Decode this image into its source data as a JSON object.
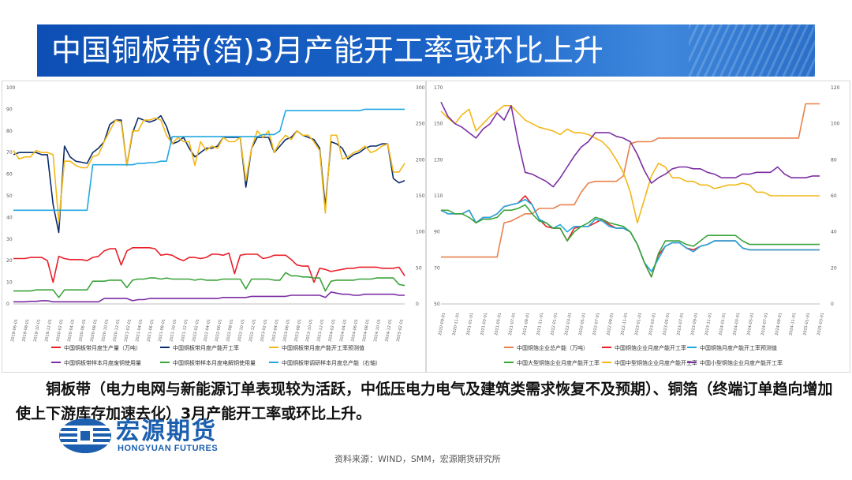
{
  "title": "中国铜板带(箔)3月产能开工率或环比上升",
  "body_text": "铜板带（电力电网与新能源订单表现较为活跃，中低压电力电气及建筑类需求恢复不及预期）、铜箔（终端订单趋向增加使上下游库存加速去化）3月产能开工率或环比上升。",
  "logo": {
    "name_cn": "宏源期货",
    "name_en": "HONGYUAN FUTURES"
  },
  "source": "资料来源：WIND，SMM，宏源期货研究所",
  "chart_data": [
    {
      "type": "line",
      "title": "",
      "x": [
        "2019-06-01",
        "2019-07-01",
        "2019-08-01",
        "2019-09-01",
        "2019-10-01",
        "2019-11-01",
        "2019-12-01",
        "2020-01-01",
        "2020-02-01",
        "2020-03-01",
        "2020-04-01",
        "2020-05-01",
        "2020-06-01",
        "2020-07-01",
        "2020-08-01",
        "2020-09-01",
        "2020-10-01",
        "2020-11-01",
        "2020-12-01",
        "2021-01-01",
        "2021-02-01",
        "2021-03-01",
        "2021-04-01",
        "2021-05-01",
        "2021-06-01",
        "2021-07-01",
        "2021-08-01",
        "2021-09-01",
        "2021-10-01",
        "2021-11-01",
        "2021-12-01",
        "2022-01-01",
        "2022-02-01",
        "2022-03-01",
        "2022-04-01",
        "2022-05-01",
        "2022-06-01",
        "2022-07-01",
        "2022-08-01",
        "2022-09-01",
        "2022-10-01",
        "2022-11-01",
        "2022-12-01",
        "2023-01-01",
        "2023-02-01",
        "2023-03-01",
        "2023-04-01",
        "2023-05-01",
        "2023-06-01",
        "2023-07-01",
        "2023-08-01",
        "2023-09-01",
        "2023-10-01",
        "2023-11-01",
        "2023-12-01",
        "2024-01-01",
        "2024-02-01",
        "2024-03-01",
        "2024-04-01",
        "2024-05-01",
        "2024-06-01",
        "2024-07-01",
        "2024-08-01",
        "2024-09-01",
        "2024-10-01",
        "2024-11-01",
        "2024-12-01",
        "2025-01-01",
        "2025-02-01",
        "2025-03-01"
      ],
      "x_tick_labels": [
        "2019-06-01",
        "2019-08-01",
        "2019-10-01",
        "2019-12-01",
        "2020-02-01",
        "2020-04-01",
        "2020-06-01",
        "2020-08-01",
        "2020-10-01",
        "2020-12-01",
        "2021-02-01",
        "2021-04-01",
        "2021-06-01",
        "2021-08-01",
        "2021-10-01",
        "2021-12-01",
        "2022-02-01",
        "2022-04-01",
        "2022-06-01",
        "2022-08-01",
        "2022-10-01",
        "2022-12-01",
        "2023-02-01",
        "2023-04-01",
        "2023-06-01",
        "2023-08-01",
        "2023-10-01",
        "2023-12-01",
        "2024-02-01",
        "2024-04-01",
        "2024-06-01",
        "2024-08-01",
        "2024-10-01",
        "2024-12-01",
        "2025-02-01"
      ],
      "ylim": [
        0,
        100
      ],
      "y_ticks": [
        0,
        10,
        20,
        30,
        40,
        50,
        60,
        70,
        80,
        90,
        100
      ],
      "y2lim": [
        0,
        300
      ],
      "y2_ticks": [
        0,
        50,
        100,
        150,
        200,
        250,
        300
      ],
      "legend_position": "bottom",
      "series": [
        {
          "name": "中国铜板带月度生产量（万吨）",
          "color": "#e8202a",
          "axis": "left",
          "values": [
            21,
            21,
            21,
            21.5,
            21.5,
            21.5,
            20,
            10,
            22,
            21,
            20.5,
            20.5,
            20.5,
            20,
            21.5,
            22,
            24.5,
            25.5,
            25.5,
            18,
            24.5,
            26,
            26,
            26,
            26,
            25.5,
            22.5,
            23,
            22.5,
            21,
            20,
            21.5,
            21.5,
            21,
            21.5,
            23,
            23,
            22.5,
            23.5,
            14,
            22.5,
            23,
            23,
            23,
            21,
            21.5,
            22.5,
            22.5,
            22.5,
            20.5,
            18,
            17.5,
            17.5,
            10,
            16.5,
            16,
            15,
            15.5,
            16,
            16.5,
            16.5,
            17,
            17,
            17,
            17,
            16.5,
            16.5,
            16.5,
            17,
            13
          ]
        },
        {
          "name": "中国铜板带月度产能开工率",
          "color": "#0b2c6b",
          "axis": "left",
          "values": [
            69,
            70,
            70,
            70,
            70,
            69,
            69,
            46,
            33,
            73,
            68,
            66,
            65.5,
            65,
            70,
            72,
            75,
            83,
            85,
            85,
            64,
            79,
            86,
            85,
            84,
            85,
            87,
            82,
            74,
            75,
            77,
            72,
            68,
            70,
            72,
            72,
            73,
            77,
            77,
            77,
            77,
            54,
            72,
            77,
            77,
            77,
            70,
            73,
            76,
            77,
            80,
            78,
            77,
            76,
            72,
            45,
            75,
            74,
            72,
            67,
            69,
            70,
            72,
            73,
            73,
            74,
            74,
            58,
            56,
            57
          ]
        },
        {
          "name": "中国铜板带月度产能开工率预测值",
          "color": "#f2b818",
          "axis": "left",
          "values": [
            71,
            67,
            68,
            68,
            71,
            70,
            70,
            69,
            38,
            66,
            66,
            64,
            63,
            63,
            68,
            69,
            75,
            80,
            85,
            84,
            64,
            80,
            80,
            85,
            85,
            86,
            85,
            78,
            74,
            77,
            75,
            75,
            64,
            75,
            71,
            73,
            72,
            77,
            75,
            75,
            77,
            57,
            72,
            80,
            77,
            80,
            70,
            75,
            78,
            76,
            80,
            78,
            78,
            75,
            71,
            42,
            78,
            78,
            67,
            68,
            70,
            71,
            73,
            70,
            71,
            73,
            74,
            61,
            61,
            65
          ]
        },
        {
          "name": "中国铜板带样本月度废铜使用量",
          "color": "#7b2fa3",
          "axis": "left",
          "values": [
            1,
            1,
            1,
            1.2,
            1.2,
            1.5,
            1.5,
            1,
            1,
            1,
            1,
            1,
            1,
            1,
            1,
            1,
            2.5,
            2.5,
            2.5,
            2.5,
            2.5,
            1.5,
            2,
            2,
            2.5,
            2.5,
            2.5,
            2.5,
            2.5,
            2.5,
            2.5,
            2.5,
            2.5,
            2.5,
            2.5,
            2.5,
            2.5,
            3,
            3,
            3,
            3,
            3,
            3.5,
            3.5,
            3.5,
            3.5,
            3.5,
            3.5,
            3.5,
            4,
            4,
            4,
            4,
            4,
            4,
            3,
            5.5,
            5,
            4.5,
            4.5,
            4,
            4,
            4.5,
            4.5,
            4.5,
            4.5,
            4.5,
            4.5,
            4,
            4
          ]
        },
        {
          "name": "中国铜板带样本月度电解铜使用量",
          "color": "#3ca33c",
          "axis": "left",
          "values": [
            6,
            6,
            6,
            6,
            6.5,
            6.5,
            6.5,
            6.5,
            3,
            6.5,
            6.5,
            6.5,
            6.5,
            6.5,
            10.5,
            10.5,
            10.5,
            11,
            11,
            11,
            7.5,
            11,
            11.5,
            11.5,
            12,
            12,
            11.5,
            12,
            11.5,
            11.5,
            11.5,
            11.5,
            11,
            11.5,
            11,
            11,
            11,
            11.5,
            11.5,
            11.5,
            11.5,
            7,
            11.5,
            11.5,
            11.5,
            11.5,
            11,
            11,
            14.5,
            13,
            13,
            12.5,
            12.5,
            12,
            12,
            6,
            10.5,
            11,
            11,
            11,
            11,
            11.5,
            11.5,
            11.5,
            12,
            12,
            12,
            12,
            9,
            8.5
          ]
        },
        {
          "name": "中国铜板带调研样本月度总产能（右轴）",
          "color": "#20a8e0",
          "axis": "right",
          "values": [
            130,
            130,
            130,
            130,
            130,
            130,
            130,
            130,
            130,
            130,
            130,
            130,
            130,
            130,
            193,
            193,
            193,
            193,
            193,
            193,
            193,
            193,
            195,
            195,
            196,
            196,
            198,
            198,
            232,
            232,
            232,
            232,
            232,
            232,
            232,
            232,
            232,
            232,
            232,
            232,
            232,
            232,
            232,
            232,
            235,
            235,
            235,
            240,
            268,
            268,
            268,
            268,
            268,
            268,
            268,
            268,
            268,
            268,
            268,
            268,
            268,
            268,
            270,
            270,
            270,
            270,
            270,
            270,
            270,
            270
          ]
        }
      ]
    },
    {
      "type": "line",
      "title": "",
      "x": [
        "2020-09-01",
        "2020-10-01",
        "2020-11-01",
        "2020-12-01",
        "2021-01-01",
        "2021-02-01",
        "2021-03-01",
        "2021-04-01",
        "2021-05-01",
        "2021-06-01",
        "2021-07-01",
        "2021-08-01",
        "2021-09-01",
        "2021-10-01",
        "2021-11-01",
        "2021-12-01",
        "2022-01-01",
        "2022-02-01",
        "2022-03-01",
        "2022-04-01",
        "2022-05-01",
        "2022-06-01",
        "2022-07-01",
        "2022-08-01",
        "2022-09-01",
        "2022-10-01",
        "2022-11-01",
        "2022-12-01",
        "2023-01-01",
        "2023-02-01",
        "2023-03-01",
        "2023-04-01",
        "2023-05-01",
        "2023-06-01",
        "2023-07-01",
        "2023-08-01",
        "2023-09-01",
        "2023-10-01",
        "2023-11-01",
        "2023-12-01",
        "2024-01-01",
        "2024-02-01",
        "2024-03-01",
        "2024-04-01",
        "2024-05-01",
        "2024-06-01",
        "2024-07-01",
        "2024-08-01",
        "2024-09-01",
        "2024-10-01",
        "2024-11-01",
        "2024-12-01",
        "2025-01-01",
        "2025-02-01",
        "2025-03-01"
      ],
      "x_tick_labels": [
        "2020-09-01",
        "2020-11-01",
        "2021-01-01",
        "2021-03-01",
        "2021-05-01",
        "2021-07-01",
        "2021-09-01",
        "2021-11-01",
        "2022-01-01",
        "2022-03-01",
        "2022-05-01",
        "2022-07-01",
        "2022-09-01",
        "2022-11-01",
        "2023-01-01",
        "2023-03-01",
        "2023-05-01",
        "2023-07-01",
        "2023-09-01",
        "2023-11-01",
        "2024-01-01",
        "2024-03-01",
        "2024-05-01",
        "2024-07-01",
        "2024-09-01",
        "2024-11-01",
        "2025-01-01",
        "2025-03-01"
      ],
      "ylim": [
        50,
        170
      ],
      "y_ticks": [
        50,
        70,
        90,
        110,
        130,
        150,
        170
      ],
      "y2lim": [
        0,
        120
      ],
      "y2_ticks": [
        0,
        20,
        40,
        60,
        80,
        100,
        120
      ],
      "legend_position": "bottom",
      "series": [
        {
          "name": "中国铜箔企业总产能（万吨）",
          "color": "#e8814b",
          "axis": "left",
          "values": [
            76,
            76,
            76,
            76,
            76,
            76,
            76,
            76,
            76,
            95,
            96,
            98,
            100,
            100,
            103,
            103,
            103,
            105,
            105,
            105,
            112,
            117,
            118,
            118,
            118,
            118,
            121,
            139,
            140,
            140,
            140,
            142,
            142,
            142,
            142,
            142,
            142,
            142,
            142,
            142,
            142,
            142,
            142,
            142,
            142,
            142,
            142,
            142,
            142,
            142,
            142,
            142,
            161,
            161,
            161
          ]
        },
        {
          "name": "中国铜箔企业月度产能开工率",
          "color": "#e8202a",
          "axis": "right",
          "values": [
            52,
            50,
            50,
            50,
            52,
            45,
            48,
            48,
            50,
            54,
            55,
            56,
            60,
            55,
            47,
            43,
            42,
            42,
            35,
            42,
            43,
            43,
            45,
            47,
            44,
            42,
            42,
            40,
            33,
            23,
            15,
            27,
            32,
            34,
            34,
            31,
            30,
            32,
            33,
            35,
            35,
            35,
            35,
            31,
            30,
            30,
            30,
            30,
            30,
            30,
            30,
            30,
            30,
            30,
            30
          ]
        },
        {
          "name": "中国铜箔月度产能开工率预测值",
          "color": "#20a8e0",
          "axis": "right",
          "values": [
            52,
            50,
            50,
            50,
            52,
            45,
            48,
            48,
            50,
            54,
            55,
            56,
            58,
            55,
            47,
            45,
            42,
            44,
            40,
            43,
            43,
            43,
            47,
            46,
            43,
            42,
            42,
            40,
            33,
            23,
            18,
            25,
            32,
            34,
            34,
            31,
            29,
            32,
            33,
            35,
            35,
            35,
            35,
            31,
            30,
            30,
            30,
            30,
            30,
            30,
            30,
            30,
            30,
            30,
            30
          ]
        },
        {
          "name": "中国大型铜箔企业月度产能开工率",
          "color": "#3ca33c",
          "axis": "right",
          "values": [
            52,
            52,
            50,
            50,
            48,
            45,
            47,
            47,
            48,
            52,
            52,
            53,
            55,
            50,
            46,
            45,
            42,
            42,
            35,
            40,
            43,
            45,
            48,
            47,
            45,
            44,
            43,
            40,
            33,
            23,
            15,
            28,
            35,
            35,
            35,
            33,
            32,
            35,
            38,
            38,
            38,
            38,
            38,
            35,
            33,
            33,
            33,
            33,
            33,
            33,
            33,
            33,
            33,
            33,
            33
          ]
        },
        {
          "name": "中国中型铜箔企业月度产能开工率",
          "color": "#f2b818",
          "axis": "right",
          "values": [
            107,
            103,
            100,
            105,
            108,
            96,
            100,
            104,
            107,
            110,
            110,
            106,
            102,
            100,
            98,
            97,
            96,
            94,
            97,
            95,
            95,
            94,
            92,
            90,
            86,
            80,
            73,
            62,
            45,
            58,
            71,
            78,
            76,
            70,
            70,
            68,
            68,
            66,
            66,
            64,
            65,
            66,
            66,
            67,
            66,
            62,
            62,
            60,
            60,
            60,
            60,
            60,
            60,
            60,
            60
          ]
        },
        {
          "name": "中国小型铜箔企业月度产能开工率",
          "color": "#7b2fa3",
          "axis": "right",
          "values": [
            112,
            104,
            100,
            98,
            95,
            92,
            97,
            100,
            106,
            102,
            110,
            90,
            73,
            72,
            70,
            68,
            65,
            70,
            76,
            82,
            87,
            90,
            95,
            95,
            95,
            93,
            92,
            90,
            83,
            74,
            67,
            70,
            72,
            75,
            76,
            76,
            75,
            75,
            73,
            72,
            70,
            70,
            70,
            72,
            72,
            73,
            73,
            73,
            76,
            72,
            70,
            70,
            70,
            71,
            71
          ]
        }
      ]
    }
  ]
}
